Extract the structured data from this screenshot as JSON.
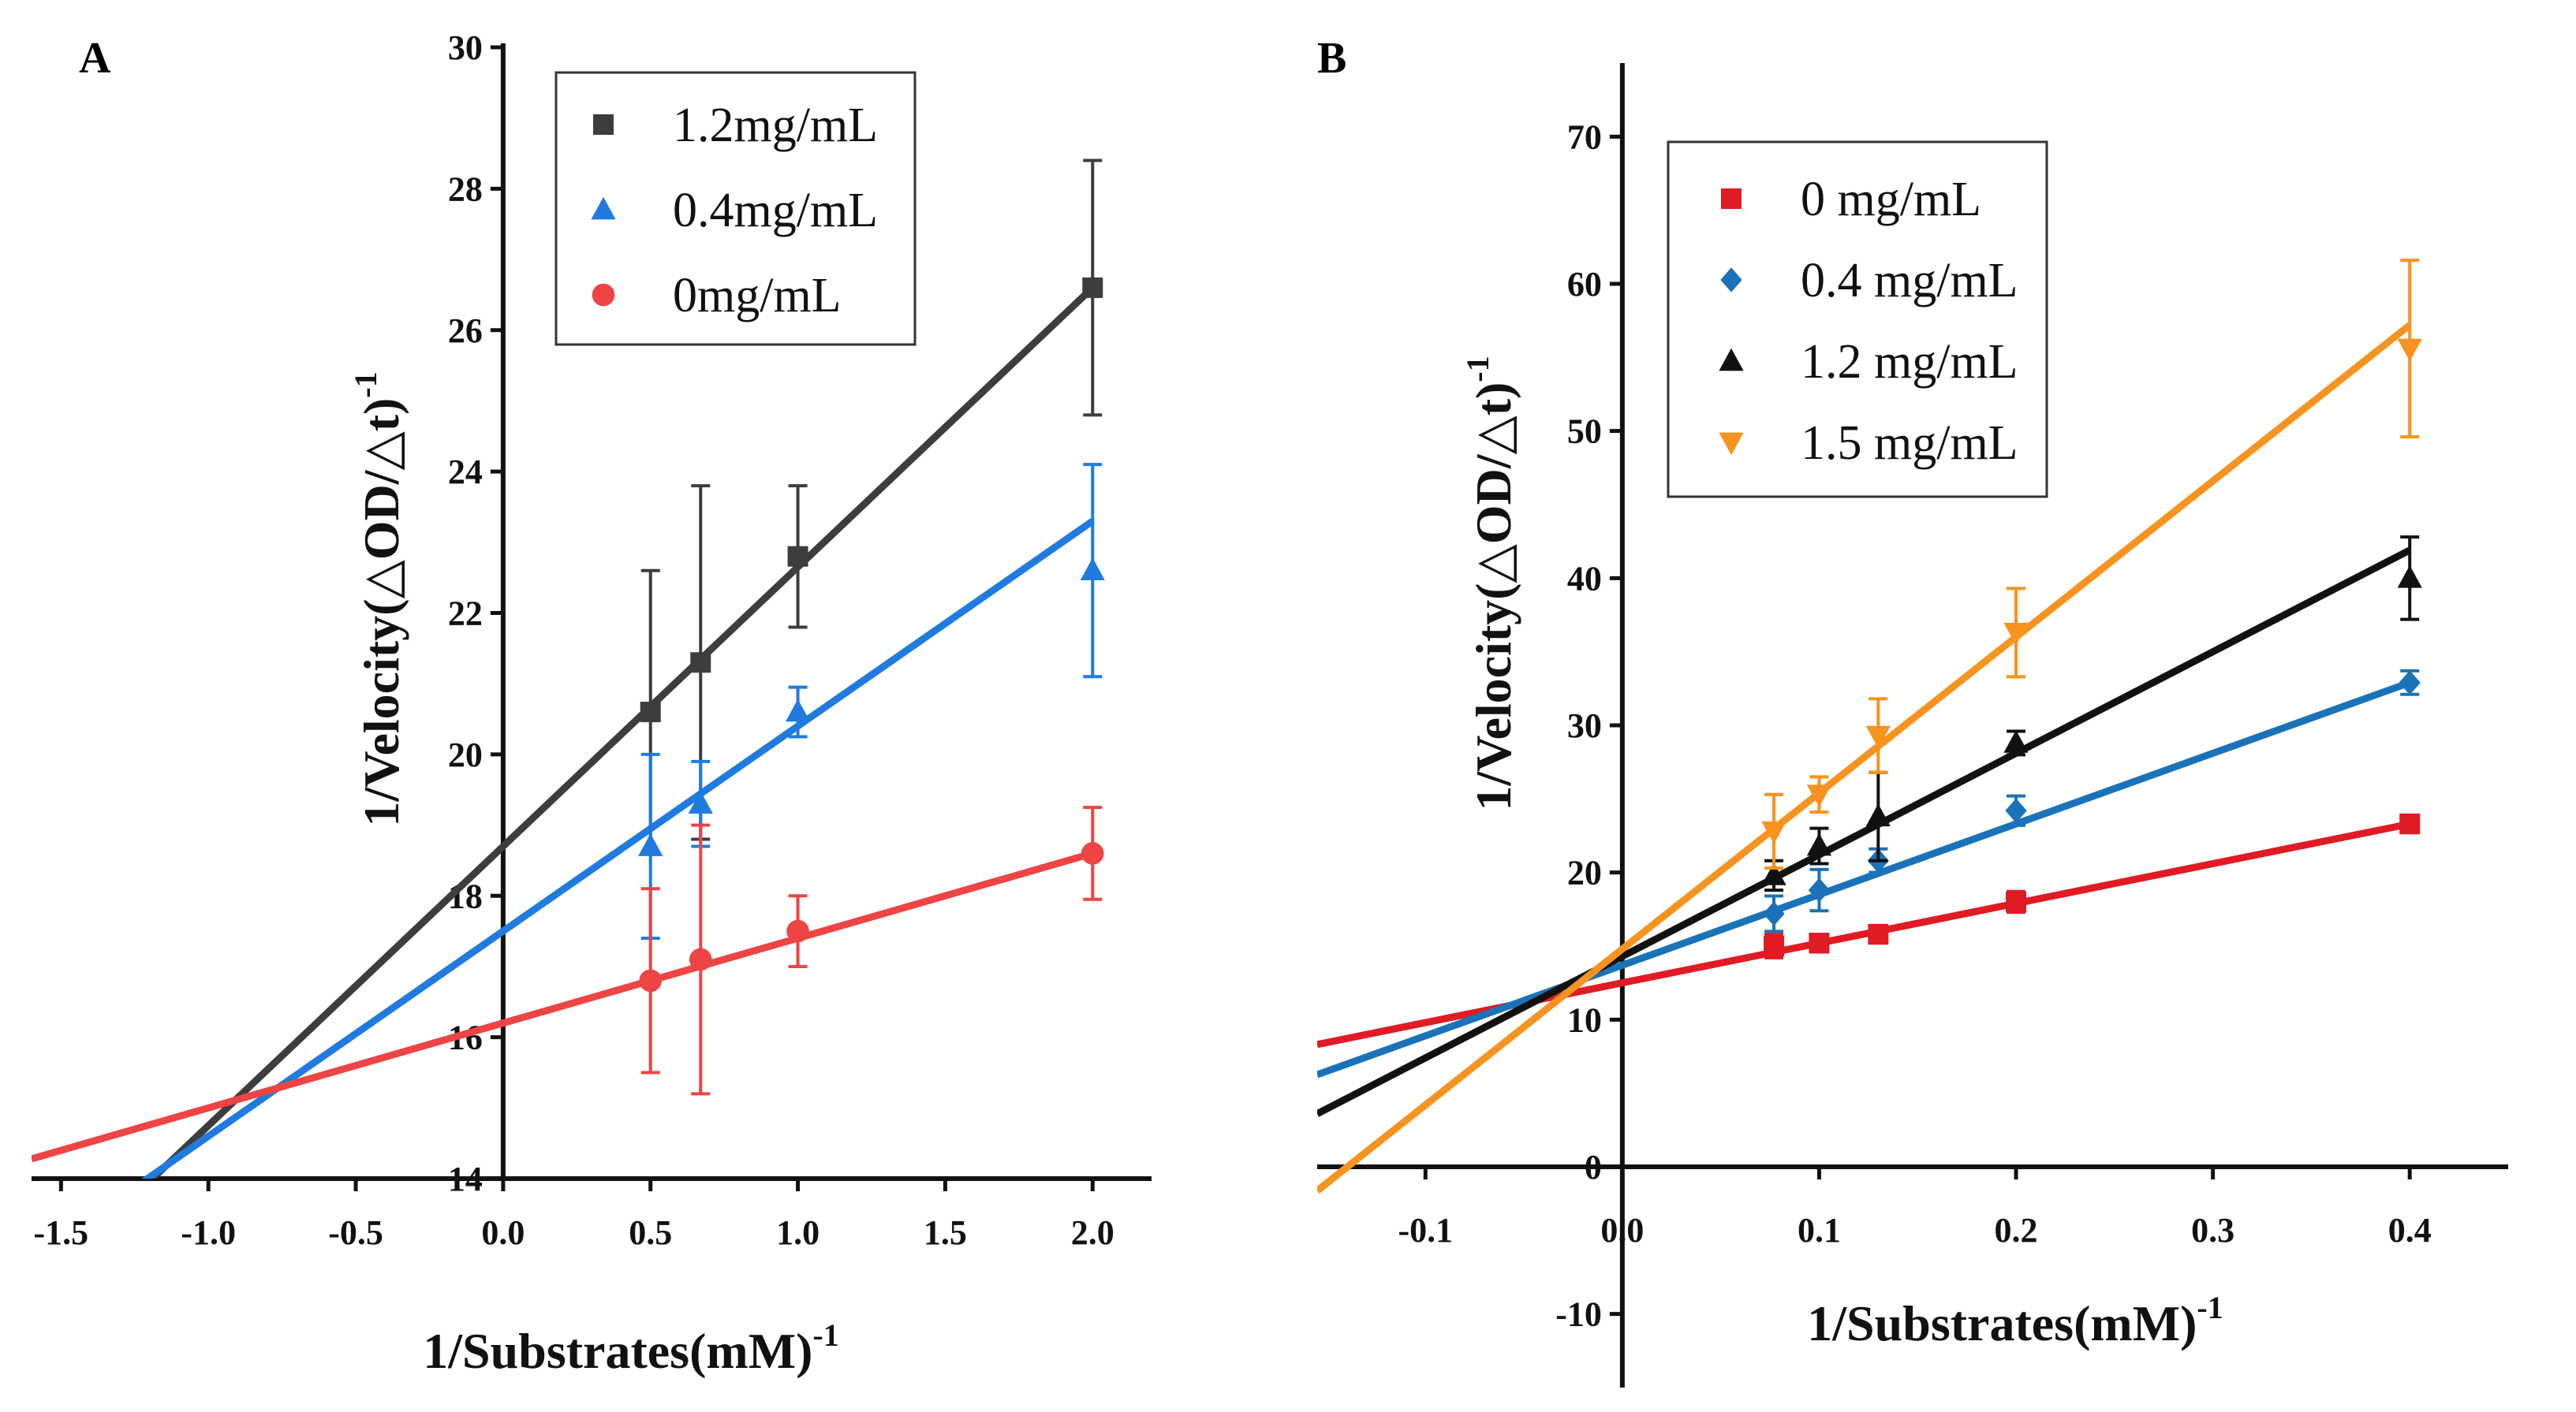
{
  "chart_data": [
    {
      "panel": "A",
      "type": "scatter",
      "xlabel": "1/Substrates(mM)",
      "xlabel_sup": "-1",
      "ylabel": "1/Velocity(△OD/△t)",
      "ylabel_sup": "-1",
      "xlim": [
        -1.6,
        2.2
      ],
      "ylim": [
        14,
        30
      ],
      "xticks": [
        -1.5,
        -1.0,
        -0.5,
        0.0,
        0.5,
        1.0,
        1.5,
        2.0
      ],
      "xtick_labels": [
        "-1.5",
        "-1.0",
        "-0.5",
        "0.0",
        "0.5",
        "1.0",
        "1.5",
        "2.0"
      ],
      "yticks": [
        14,
        16,
        18,
        20,
        22,
        24,
        26,
        28,
        30
      ],
      "ytick_labels": [
        "14",
        "16",
        "18",
        "20",
        "22",
        "24",
        "26",
        "28",
        "30"
      ],
      "legend_position": "top-right",
      "series": [
        {
          "name": "1.2mg/mL",
          "color": "#3d3d3d",
          "marker": "square",
          "x": [
            0.5,
            0.67,
            1.0,
            2.0
          ],
          "y": [
            20.6,
            21.3,
            22.8,
            26.6
          ],
          "err": [
            2.0,
            2.5,
            1.0,
            1.8
          ],
          "fit": {
            "slope": 3.95,
            "intercept": 18.7
          }
        },
        {
          "name": "0.4mg/mL",
          "color": "#1f7be0",
          "marker": "triangle",
          "x": [
            0.5,
            0.67,
            1.0,
            2.0
          ],
          "y": [
            18.7,
            19.3,
            20.6,
            22.6
          ],
          "err": [
            1.3,
            0.6,
            0.35,
            1.5
          ],
          "fit": {
            "slope": 2.9,
            "intercept": 17.5
          }
        },
        {
          "name": "0mg/mL",
          "color": "#ee4444",
          "marker": "circle",
          "x": [
            0.5,
            0.67,
            1.0,
            2.0
          ],
          "y": [
            16.8,
            17.1,
            17.5,
            18.6
          ],
          "err": [
            1.3,
            1.9,
            0.5,
            0.65
          ],
          "fit": {
            "slope": 1.2,
            "intercept": 16.2
          }
        }
      ]
    },
    {
      "panel": "B",
      "type": "scatter",
      "xlabel": "1/Substrates(mM)",
      "xlabel_sup": "-1",
      "ylabel": "1/Velocity(△OD/△t)",
      "ylabel_sup": "-1",
      "xlim": [
        -0.155,
        0.45
      ],
      "ylim": [
        -15,
        75
      ],
      "xticks": [
        -0.1,
        0.0,
        0.1,
        0.2,
        0.3,
        0.4
      ],
      "xtick_labels": [
        "-0.1",
        "0.0",
        "0.1",
        "0.2",
        "0.3",
        "0.4"
      ],
      "yticks": [
        -10,
        0,
        10,
        20,
        30,
        40,
        50,
        60,
        70
      ],
      "ytick_labels": [
        "-10",
        "0",
        "10",
        "20",
        "30",
        "40",
        "50",
        "60",
        "70"
      ],
      "legend_position": "top-left",
      "series": [
        {
          "name": "0 mg/mL",
          "color": "#e01b24",
          "marker": "square",
          "x": [
            0.077,
            0.1,
            0.13,
            0.2,
            0.4
          ],
          "y": [
            15.0,
            15.2,
            15.8,
            18.0,
            23.3
          ],
          "err": [
            0.8,
            0.6,
            0.6,
            0.7,
            0.6
          ],
          "fit": {
            "slope": 27.0,
            "intercept": 12.5
          }
        },
        {
          "name": "0.4 mg/mL",
          "color": "#1a73b8",
          "marker": "diamond",
          "x": [
            0.077,
            0.1,
            0.13,
            0.2,
            0.4
          ],
          "y": [
            17.2,
            18.8,
            20.8,
            24.2,
            32.9
          ],
          "err": [
            1.2,
            1.4,
            0.8,
            1.0,
            0.8
          ],
          "fit": {
            "slope": 48.0,
            "intercept": 13.7
          }
        },
        {
          "name": "1.2 mg/mL",
          "color": "#111111",
          "marker": "triangle",
          "x": [
            0.077,
            0.1,
            0.13,
            0.2,
            0.4
          ],
          "y": [
            19.8,
            21.8,
            23.8,
            28.8,
            40.0
          ],
          "err": [
            1.0,
            1.2,
            3.0,
            0.8,
            2.8
          ],
          "fit": {
            "slope": 69.0,
            "intercept": 14.3
          }
        },
        {
          "name": "1.5 mg/mL",
          "color": "#f7931e",
          "marker": "triangle-down",
          "x": [
            0.077,
            0.1,
            0.13,
            0.2,
            0.4
          ],
          "y": [
            22.8,
            25.3,
            29.3,
            36.3,
            55.6
          ],
          "err": [
            2.5,
            1.2,
            2.5,
            3.0,
            6.0
          ],
          "fit": {
            "slope": 106.0,
            "intercept": 14.8
          }
        }
      ]
    }
  ],
  "panels": {
    "a_label": "A",
    "b_label": "B"
  }
}
